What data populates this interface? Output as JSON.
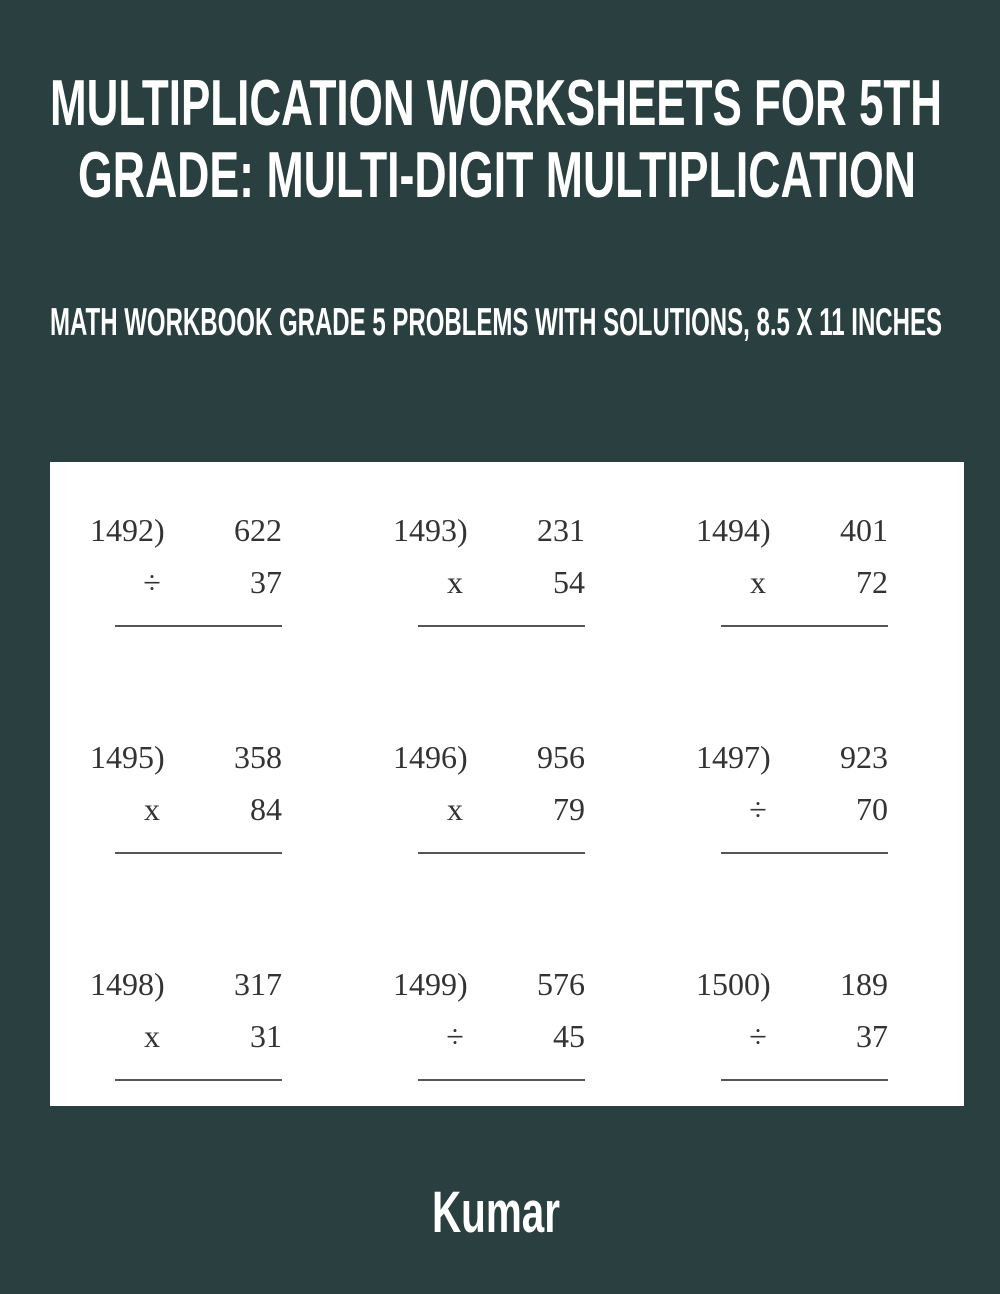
{
  "title_lines": [
    "MULTIPLICATION WORKSHEETS FOR 5TH",
    "GRADE: MULTI-DIGIT MULTIPLICATION"
  ],
  "subtitle": "MATH WORKBOOK GRADE 5 PROBLEMS WITH SOLUTIONS, 8.5 X 11 INCHES",
  "author": "Kumar",
  "colors": {
    "background": "#2a3f3f",
    "panel": "#ffffff",
    "text": "#ffffff"
  },
  "problems": [
    {
      "label": "1492)",
      "top": "622",
      "op": "÷",
      "bottom": "37"
    },
    {
      "label": "1493)",
      "top": "231",
      "op": "x",
      "bottom": "54"
    },
    {
      "label": "1494)",
      "top": "401",
      "op": "x",
      "bottom": "72"
    },
    {
      "label": "1495)",
      "top": "358",
      "op": "x",
      "bottom": "84"
    },
    {
      "label": "1496)",
      "top": "956",
      "op": "x",
      "bottom": "79"
    },
    {
      "label": "1497)",
      "top": "923",
      "op": "÷",
      "bottom": "70"
    },
    {
      "label": "1498)",
      "top": "317",
      "op": "x",
      "bottom": "31"
    },
    {
      "label": "1499)",
      "top": "576",
      "op": "÷",
      "bottom": "45"
    },
    {
      "label": "1500)",
      "top": "189",
      "op": "÷",
      "bottom": "37"
    }
  ]
}
